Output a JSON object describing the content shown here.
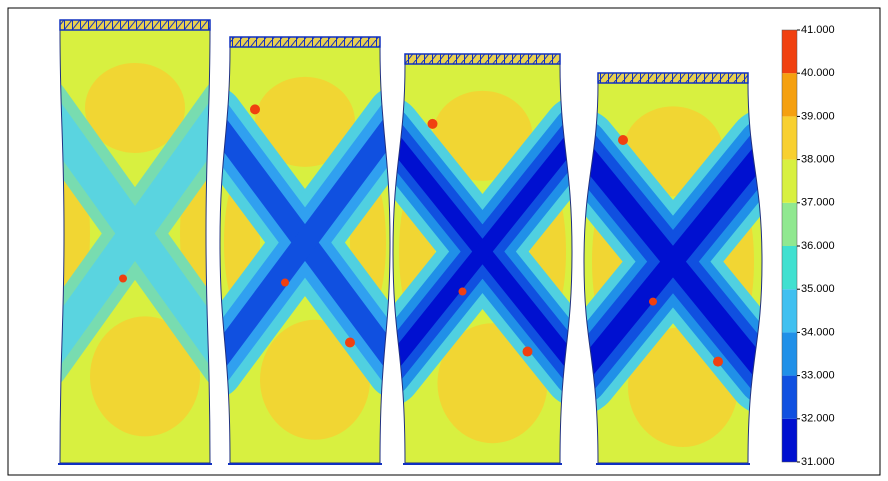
{
  "colorbar": {
    "lim": [
      31,
      41
    ],
    "ticks": [
      {
        "value": 31,
        "label": "31.000"
      },
      {
        "value": 32,
        "label": "32.000"
      },
      {
        "value": 33,
        "label": "33.000"
      },
      {
        "value": 34,
        "label": "34.000"
      },
      {
        "value": 35,
        "label": "35.000"
      },
      {
        "value": 36,
        "label": "36.000"
      },
      {
        "value": 37,
        "label": "37.000"
      },
      {
        "value": 38,
        "label": "38.000"
      },
      {
        "value": 39,
        "label": "39.000"
      },
      {
        "value": 40,
        "label": "40.000"
      },
      {
        "value": 41,
        "label": "41.000"
      }
    ],
    "colors": [
      "#0010d0",
      "#1050e0",
      "#2090e8",
      "#40c0f0",
      "#40e0d0",
      "#90e890",
      "#d8f040",
      "#f8d030",
      "#f5a010",
      "#f04010"
    ]
  }
}
